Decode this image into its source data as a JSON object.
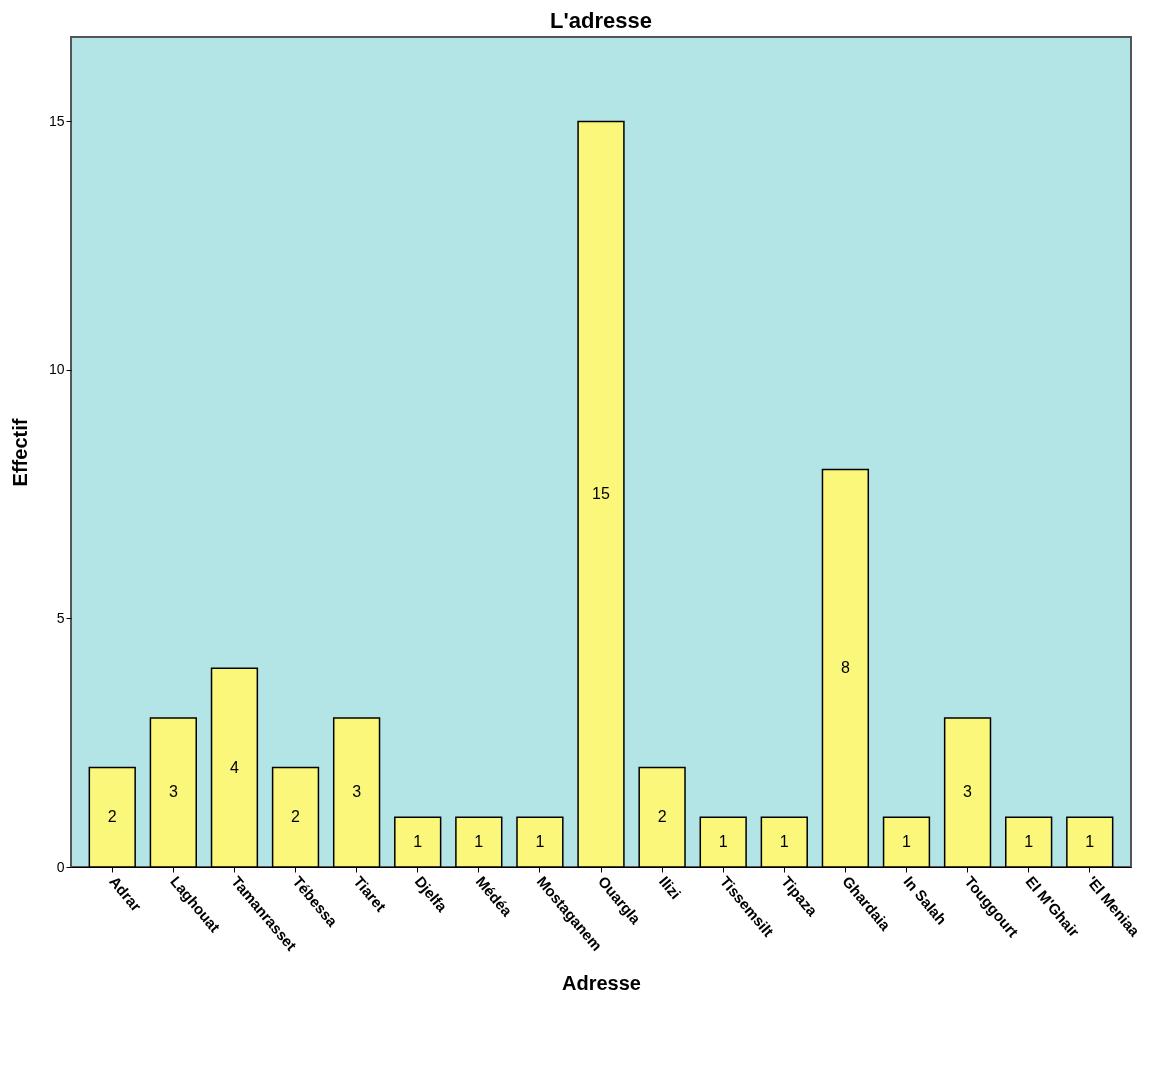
{
  "chart_data": {
    "type": "bar",
    "title": "L'adresse",
    "xlabel": "Adresse",
    "ylabel": "Effectif",
    "categories": [
      "Adrar",
      "Laghouat",
      "Tamanrasset",
      "Tébessa",
      "Tiaret",
      "Djelfa",
      "Médéa",
      "Mostaganem",
      "Ouargla",
      "Ilizi",
      "Tissemsilt",
      "Tipaza",
      "Ghardaia",
      "In Salah",
      "Touggourt",
      "El M'Ghair",
      "'El Meniaa"
    ],
    "values": [
      2,
      3,
      4,
      2,
      3,
      1,
      1,
      1,
      15,
      2,
      1,
      1,
      8,
      1,
      3,
      1,
      1
    ],
    "color": "#fbf77a",
    "ylim": [
      0,
      16.7
    ],
    "yticks": [
      0,
      5,
      10,
      15
    ],
    "grid": false,
    "data_labels": true
  }
}
